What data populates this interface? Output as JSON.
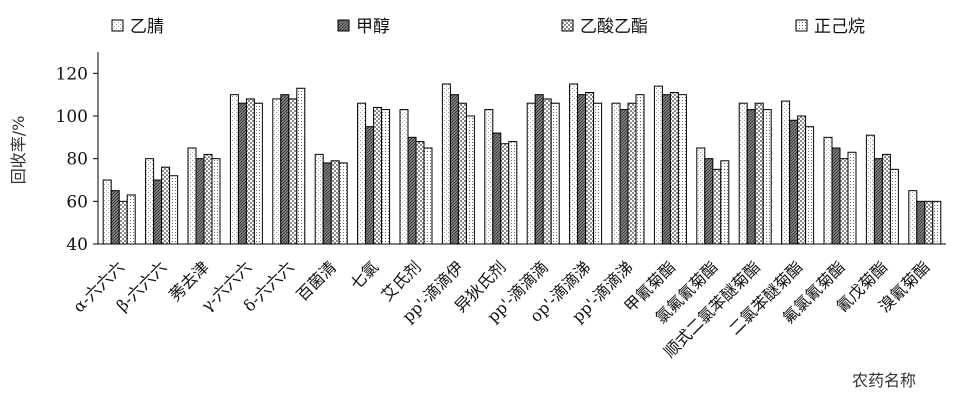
{
  "chart_data": {
    "type": "bar",
    "title": "",
    "xlabel": "农药名称",
    "ylabel": "回收率/%",
    "ylim": [
      40,
      130
    ],
    "yticks": [
      40,
      60,
      80,
      100,
      120
    ],
    "grid": false,
    "legend_position": "top",
    "categories": [
      "α-六六六",
      "β-六六六",
      "莠去津",
      "γ-六六六",
      "δ-六六六",
      "百菌清",
      "七氯",
      "艾氏剂",
      "pp'-滴滴伊",
      "异狄氏剂",
      "pp'-滴滴滴",
      "op'-滴滴涕",
      "pp'-滴滴涕",
      "甲氰菊酯",
      "氯氟氰菊酯",
      "顺式二氯苯醚菊酯",
      "二氯苯醚菊酯",
      "氟氯氰菊酯",
      "氰戊菊酯",
      "溴氰菊酯"
    ],
    "series": [
      {
        "name": "乙腈",
        "pattern": "light",
        "values": [
          70,
          80,
          85,
          110,
          108,
          82,
          106,
          103,
          115,
          103,
          106,
          115,
          106,
          114,
          85,
          106,
          107,
          90,
          91,
          65
        ]
      },
      {
        "name": "甲醇",
        "pattern": "dark",
        "values": [
          65,
          70,
          80,
          106,
          110,
          78,
          95,
          90,
          110,
          92,
          110,
          110,
          103,
          110,
          80,
          103,
          98,
          85,
          80,
          60
        ]
      },
      {
        "name": "乙酸乙酯",
        "pattern": "checker",
        "values": [
          60,
          76,
          82,
          108,
          108,
          79,
          104,
          88,
          106,
          87,
          108,
          111,
          106,
          111,
          75,
          106,
          100,
          80,
          82,
          60
        ]
      },
      {
        "name": "正己烷",
        "pattern": "dots",
        "values": [
          63,
          72,
          80,
          106,
          113,
          78,
          103,
          85,
          100,
          88,
          106,
          106,
          110,
          110,
          79,
          103,
          95,
          83,
          75,
          60
        ]
      }
    ]
  }
}
